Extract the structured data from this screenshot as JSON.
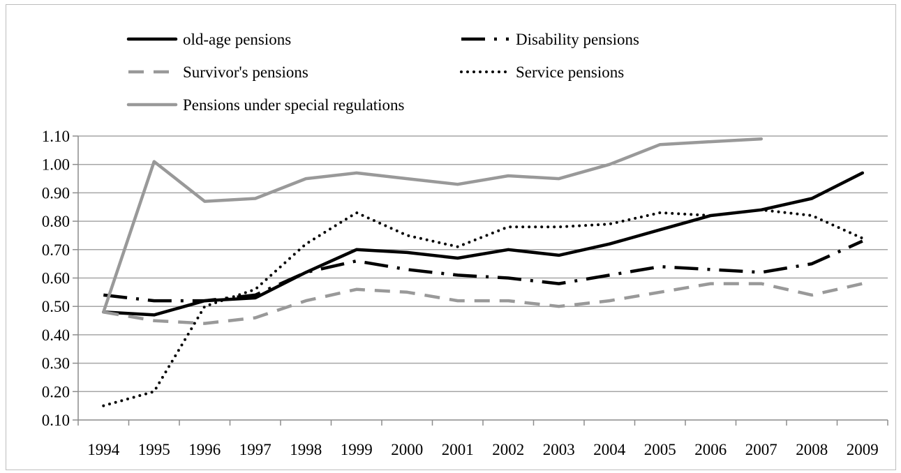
{
  "chart_data": {
    "type": "line",
    "title": "",
    "xlabel": "",
    "ylabel": "",
    "x": [
      "1994",
      "1995",
      "1996",
      "1997",
      "1998",
      "1999",
      "2000",
      "2001",
      "2002",
      "2003",
      "2004",
      "2005",
      "2006",
      "2007",
      "2008",
      "2009"
    ],
    "ylim": [
      0.1,
      1.1
    ],
    "y_ticks": [
      "0.10",
      "0.20",
      "0.30",
      "0.40",
      "0.50",
      "0.60",
      "0.70",
      "0.80",
      "0.90",
      "1.00",
      "1.10"
    ],
    "grid": true,
    "legend_position": "top",
    "series": [
      {
        "name": "old-age pensions",
        "color": "#000000",
        "style": "solid",
        "values": [
          0.48,
          0.47,
          0.52,
          0.53,
          0.62,
          0.7,
          0.69,
          0.67,
          0.7,
          0.68,
          0.72,
          0.77,
          0.82,
          0.84,
          0.88,
          0.97
        ]
      },
      {
        "name": "Disability pensions",
        "color": "#000000",
        "style": "dash-dot",
        "values": [
          0.54,
          0.52,
          0.52,
          0.54,
          0.62,
          0.66,
          0.63,
          0.61,
          0.6,
          0.58,
          0.61,
          0.64,
          0.63,
          0.62,
          0.65,
          0.73
        ]
      },
      {
        "name": "Survivor's pensions",
        "color": "#999999",
        "style": "dashed",
        "values": [
          0.48,
          0.45,
          0.44,
          0.46,
          0.52,
          0.56,
          0.55,
          0.52,
          0.52,
          0.5,
          0.52,
          0.55,
          0.58,
          0.58,
          0.54,
          0.58
        ]
      },
      {
        "name": "Service pensions",
        "color": "#000000",
        "style": "dotted",
        "values": [
          0.15,
          0.2,
          0.5,
          0.56,
          0.72,
          0.83,
          0.75,
          0.71,
          0.78,
          0.78,
          0.79,
          0.83,
          0.82,
          0.84,
          0.82,
          0.74
        ]
      },
      {
        "name": "Pensions under special regulations",
        "color": "#999999",
        "style": "solid",
        "values": [
          0.48,
          1.01,
          0.87,
          0.88,
          0.95,
          0.97,
          0.95,
          0.93,
          0.96,
          0.95,
          1.0,
          1.07,
          1.08,
          1.09,
          null,
          null
        ]
      }
    ]
  }
}
